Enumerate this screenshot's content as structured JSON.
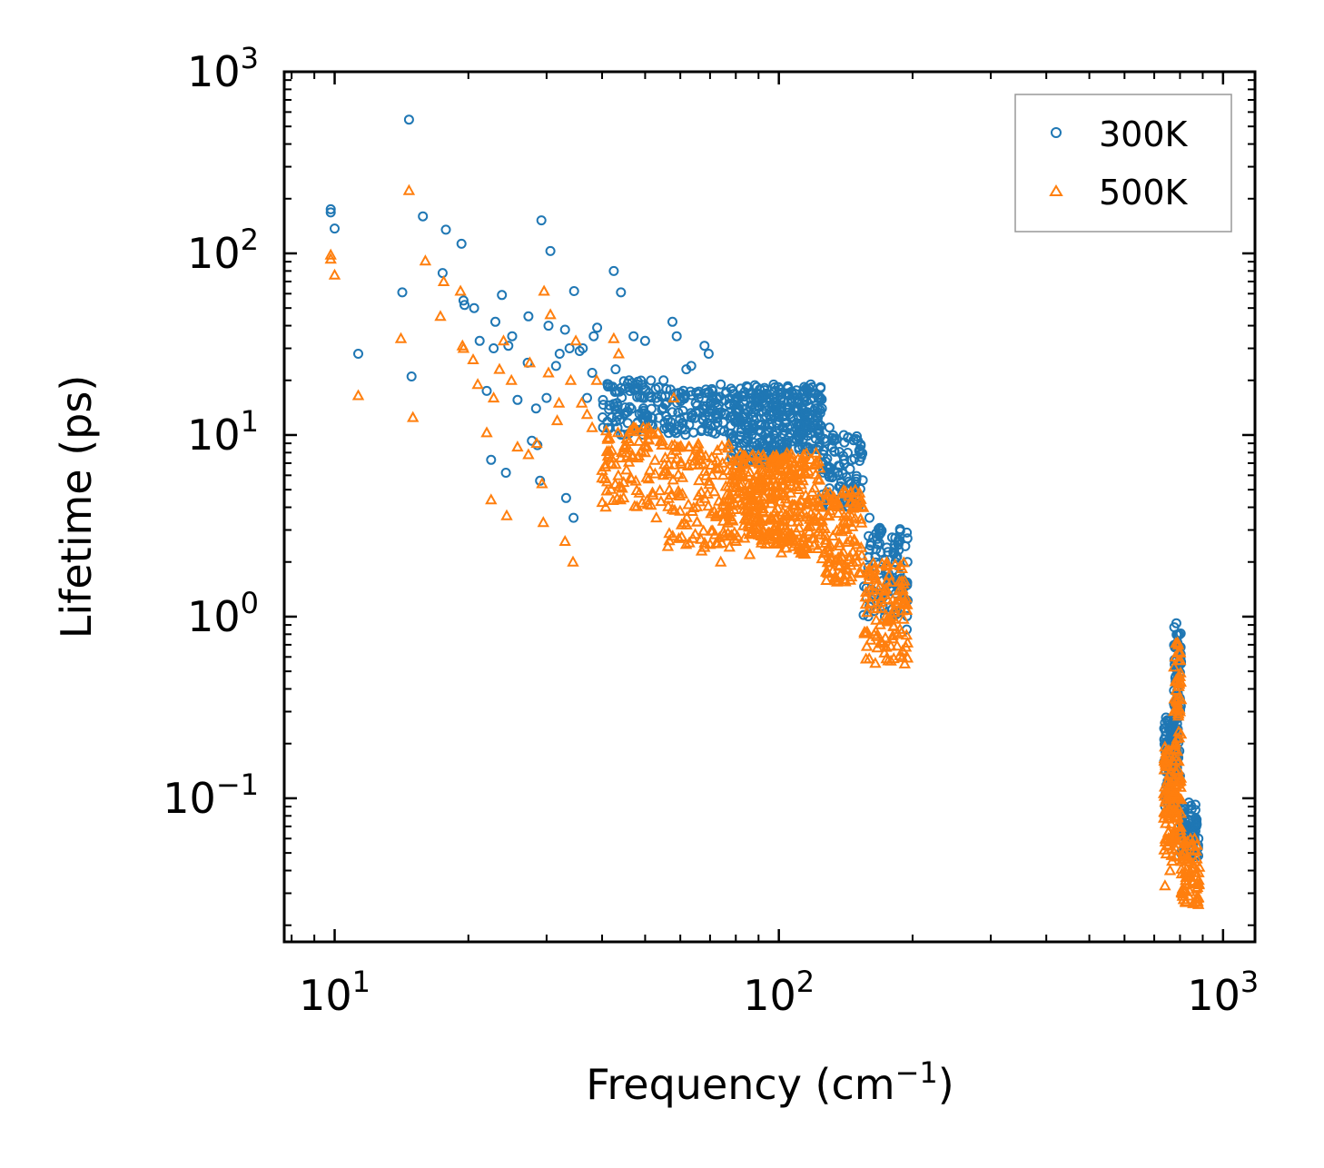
{
  "chart_data": {
    "type": "scatter",
    "xscale": "log",
    "yscale": "log",
    "xlim": [
      7.7,
      1180
    ],
    "ylim": [
      0.0162,
      1000
    ],
    "xlabel": "Frequency (cm",
    "xlabel_sup": "−1",
    "xlabel_suffix": ")",
    "ylabel": "Lifetime (ps)",
    "x_ticks": [
      {
        "value": 10,
        "base": "10",
        "exp": "1"
      },
      {
        "value": 100,
        "base": "10",
        "exp": "2"
      },
      {
        "value": 1000,
        "base": "10",
        "exp": "3"
      }
    ],
    "y_ticks": [
      {
        "value": 0.1,
        "base": "10",
        "exp": "−1"
      },
      {
        "value": 1,
        "base": "10",
        "exp": "0"
      },
      {
        "value": 10,
        "base": "10",
        "exp": "1"
      },
      {
        "value": 100,
        "base": "10",
        "exp": "2"
      },
      {
        "value": 1000,
        "base": "10",
        "exp": "3"
      }
    ],
    "legend_position": "top-right",
    "series": [
      {
        "name": "300K",
        "color": "#1f77b4",
        "marker": "circle",
        "points": [
          [
            9.8,
            175
          ],
          [
            9.8,
            168
          ],
          [
            10.0,
            137
          ],
          [
            11.3,
            28
          ],
          [
            14.2,
            61
          ],
          [
            14.7,
            545
          ],
          [
            14.9,
            21
          ],
          [
            15.8,
            160
          ],
          [
            17.5,
            78
          ],
          [
            17.8,
            135
          ],
          [
            19.3,
            113
          ],
          [
            19.5,
            55
          ],
          [
            19.6,
            52
          ],
          [
            20.6,
            50
          ],
          [
            21.2,
            33
          ],
          [
            22.0,
            17.5
          ],
          [
            22.5,
            7.3
          ],
          [
            22.8,
            30
          ],
          [
            23.0,
            42
          ],
          [
            23.8,
            59
          ],
          [
            24.3,
            6.2
          ],
          [
            24.6,
            31
          ],
          [
            25.1,
            35
          ],
          [
            25.8,
            15.6
          ],
          [
            27.2,
            25
          ],
          [
            27.3,
            45
          ],
          [
            27.8,
            9.3
          ],
          [
            28.4,
            14
          ],
          [
            28.6,
            8.8
          ],
          [
            29.0,
            5.6
          ],
          [
            29.2,
            152
          ],
          [
            30.0,
            16
          ],
          [
            30.3,
            40
          ],
          [
            30.6,
            103
          ],
          [
            31.5,
            24
          ],
          [
            32.1,
            28
          ],
          [
            33.0,
            38
          ],
          [
            33.2,
            4.5
          ],
          [
            33.8,
            30
          ],
          [
            34.5,
            3.5
          ],
          [
            34.6,
            62
          ],
          [
            35.6,
            29
          ],
          [
            36.2,
            30
          ],
          [
            37.0,
            16
          ],
          [
            38.0,
            22
          ],
          [
            38.3,
            35
          ],
          [
            39.0,
            39
          ],
          [
            40.2,
            11
          ],
          [
            41.3,
            19
          ],
          [
            42.5,
            80
          ],
          [
            42.9,
            23
          ],
          [
            43.2,
            15
          ],
          [
            44.1,
            61
          ],
          [
            45.0,
            18
          ],
          [
            46.0,
            20
          ],
          [
            47.1,
            35
          ],
          [
            48.1,
            19
          ],
          [
            50.0,
            33
          ],
          [
            51.0,
            17
          ],
          [
            53.0,
            16
          ],
          [
            55.0,
            20
          ],
          [
            57.6,
            42
          ],
          [
            58.9,
            35
          ],
          [
            60.3,
            17
          ],
          [
            61.9,
            23
          ],
          [
            63.5,
            24
          ],
          [
            66.0,
            16
          ],
          [
            68.0,
            31
          ],
          [
            69.5,
            28
          ],
          [
            71.0,
            16
          ],
          [
            74.0,
            19
          ],
          [
            76.0,
            17
          ],
          [
            78.0,
            18
          ],
          [
            80.0,
            16
          ],
          [
            82.0,
            18
          ],
          [
            86.0,
            16
          ],
          [
            88.0,
            12
          ],
          [
            90.0,
            16
          ],
          [
            95.0,
            13
          ],
          [
            100.0,
            12
          ],
          [
            105.0,
            17
          ],
          [
            110.0,
            15
          ],
          [
            115.0,
            18
          ],
          [
            118.0,
            19
          ],
          [
            120.0,
            16
          ],
          [
            125.0,
            14
          ],
          [
            130.0,
            11
          ],
          [
            135.0,
            9.5
          ],
          [
            140.0,
            10
          ],
          [
            148.0,
            7.4
          ],
          [
            152.0,
            7.2
          ],
          [
            160.0,
            3.5
          ],
          [
            168.0,
            2.8
          ],
          [
            175.0,
            2.4
          ],
          [
            183.0,
            2.0
          ],
          [
            190.0,
            1.6
          ],
          [
            192.0,
            1.2
          ],
          [
            194.0,
            0.85
          ],
          [
            740.0,
            0.26
          ],
          [
            755.0,
            0.24
          ],
          [
            770.0,
            0.22
          ],
          [
            785.0,
            0.92
          ],
          [
            790.0,
            0.7
          ],
          [
            800.0,
            0.35
          ],
          [
            820.0,
            0.09
          ],
          [
            850.0,
            0.08
          ],
          [
            870.0,
            0.07
          ],
          [
            880.0,
            0.06
          ]
        ],
        "dense_bands": [
          {
            "x": [
              40,
              55
            ],
            "y_lo": 10,
            "y_hi": 20,
            "n": 90
          },
          {
            "x": [
              55,
              78
            ],
            "y_lo": 10,
            "y_hi": 18,
            "n": 110
          },
          {
            "x": [
              78,
              100
            ],
            "y_lo": 7,
            "y_hi": 19,
            "n": 200
          },
          {
            "x": [
              100,
              125
            ],
            "y_lo": 8,
            "y_hi": 19,
            "n": 170
          },
          {
            "x": [
              125,
              155
            ],
            "y_lo": 4,
            "y_hi": 10,
            "n": 100
          },
          {
            "x": [
              155,
              195
            ],
            "y_lo": 1.0,
            "y_hi": 3.4,
            "n": 100
          },
          {
            "x": [
              735,
              790
            ],
            "y_lo": 0.09,
            "y_hi": 0.28,
            "n": 90
          },
          {
            "x": [
              775,
              805
            ],
            "y_lo": 0.12,
            "y_hi": 0.9,
            "n": 80
          },
          {
            "x": [
              805,
              880
            ],
            "y_lo": 0.045,
            "y_hi": 0.095,
            "n": 70
          }
        ]
      },
      {
        "name": "500K",
        "color": "#ff7f0e",
        "marker": "triangle",
        "points": [
          [
            9.8,
            98
          ],
          [
            9.8,
            93
          ],
          [
            10.0,
            76
          ],
          [
            11.3,
            16.5
          ],
          [
            14.1,
            34
          ],
          [
            14.7,
            222
          ],
          [
            15.0,
            12.5
          ],
          [
            16.0,
            91
          ],
          [
            17.3,
            45
          ],
          [
            17.6,
            70
          ],
          [
            19.2,
            62
          ],
          [
            19.4,
            31
          ],
          [
            19.5,
            30
          ],
          [
            20.5,
            26
          ],
          [
            21.0,
            19
          ],
          [
            22.0,
            10.3
          ],
          [
            22.5,
            4.4
          ],
          [
            22.8,
            16
          ],
          [
            23.5,
            23
          ],
          [
            24.0,
            33
          ],
          [
            24.4,
            3.6
          ],
          [
            25.0,
            20
          ],
          [
            25.8,
            8.6
          ],
          [
            27.3,
            7.8
          ],
          [
            27.5,
            25
          ],
          [
            28.5,
            9
          ],
          [
            29.3,
            5.4
          ],
          [
            29.5,
            3.3
          ],
          [
            29.6,
            62
          ],
          [
            30.3,
            22
          ],
          [
            30.6,
            46
          ],
          [
            31.7,
            12
          ],
          [
            32.0,
            15
          ],
          [
            33.0,
            2.6
          ],
          [
            34.0,
            20
          ],
          [
            34.4,
            2.0
          ],
          [
            34.9,
            33
          ],
          [
            36.0,
            15
          ],
          [
            37.0,
            13
          ],
          [
            38.0,
            11
          ],
          [
            38.9,
            20
          ],
          [
            40.0,
            5.8
          ],
          [
            42.0,
            6.9
          ],
          [
            42.5,
            34
          ],
          [
            43.6,
            28
          ],
          [
            44.0,
            4.4
          ],
          [
            45.0,
            8.5
          ],
          [
            47.0,
            11
          ],
          [
            50.0,
            8
          ],
          [
            53.0,
            3.5
          ],
          [
            55.0,
            6
          ],
          [
            58.0,
            16
          ],
          [
            62.0,
            3.2
          ],
          [
            64.0,
            2.7
          ],
          [
            67.0,
            2.3
          ],
          [
            70.0,
            2.5
          ],
          [
            74.0,
            2.0
          ],
          [
            80.0,
            2.6
          ],
          [
            86.0,
            2.2
          ],
          [
            95.0,
            3.4
          ],
          [
            100.0,
            3.0
          ],
          [
            110.0,
            2.6
          ],
          [
            115.0,
            2.4
          ],
          [
            120.0,
            2.7
          ],
          [
            130.0,
            2.0
          ],
          [
            140.0,
            1.6
          ],
          [
            150.0,
            2.5
          ],
          [
            160.0,
            1.4
          ],
          [
            170.0,
            1.2
          ],
          [
            180.0,
            1.0
          ],
          [
            185.0,
            0.8
          ],
          [
            190.0,
            0.65
          ],
          [
            192.0,
            0.55
          ],
          [
            740.0,
            0.033
          ],
          [
            760.0,
            0.04
          ],
          [
            780.0,
            0.6
          ],
          [
            790.0,
            0.72
          ],
          [
            800.0,
            0.3
          ],
          [
            820.0,
            0.05
          ],
          [
            850.0,
            0.035
          ],
          [
            870.0,
            0.028
          ],
          [
            880.0,
            0.026
          ]
        ],
        "dense_bands": [
          {
            "x": [
              40,
              55
            ],
            "y_lo": 4,
            "y_hi": 11,
            "n": 90
          },
          {
            "x": [
              55,
              78
            ],
            "y_lo": 2.4,
            "y_hi": 9,
            "n": 130
          },
          {
            "x": [
              78,
              100
            ],
            "y_lo": 2.5,
            "y_hi": 8,
            "n": 200
          },
          {
            "x": [
              100,
              125
            ],
            "y_lo": 2.2,
            "y_hi": 8,
            "n": 170
          },
          {
            "x": [
              125,
              155
            ],
            "y_lo": 1.5,
            "y_hi": 5,
            "n": 120
          },
          {
            "x": [
              155,
              195
            ],
            "y_lo": 0.55,
            "y_hi": 2.0,
            "n": 110
          },
          {
            "x": [
              735,
              790
            ],
            "y_lo": 0.045,
            "y_hi": 0.2,
            "n": 90
          },
          {
            "x": [
              775,
              805
            ],
            "y_lo": 0.06,
            "y_hi": 0.72,
            "n": 80
          },
          {
            "x": [
              805,
              885
            ],
            "y_lo": 0.026,
            "y_hi": 0.06,
            "n": 70
          }
        ]
      }
    ]
  }
}
